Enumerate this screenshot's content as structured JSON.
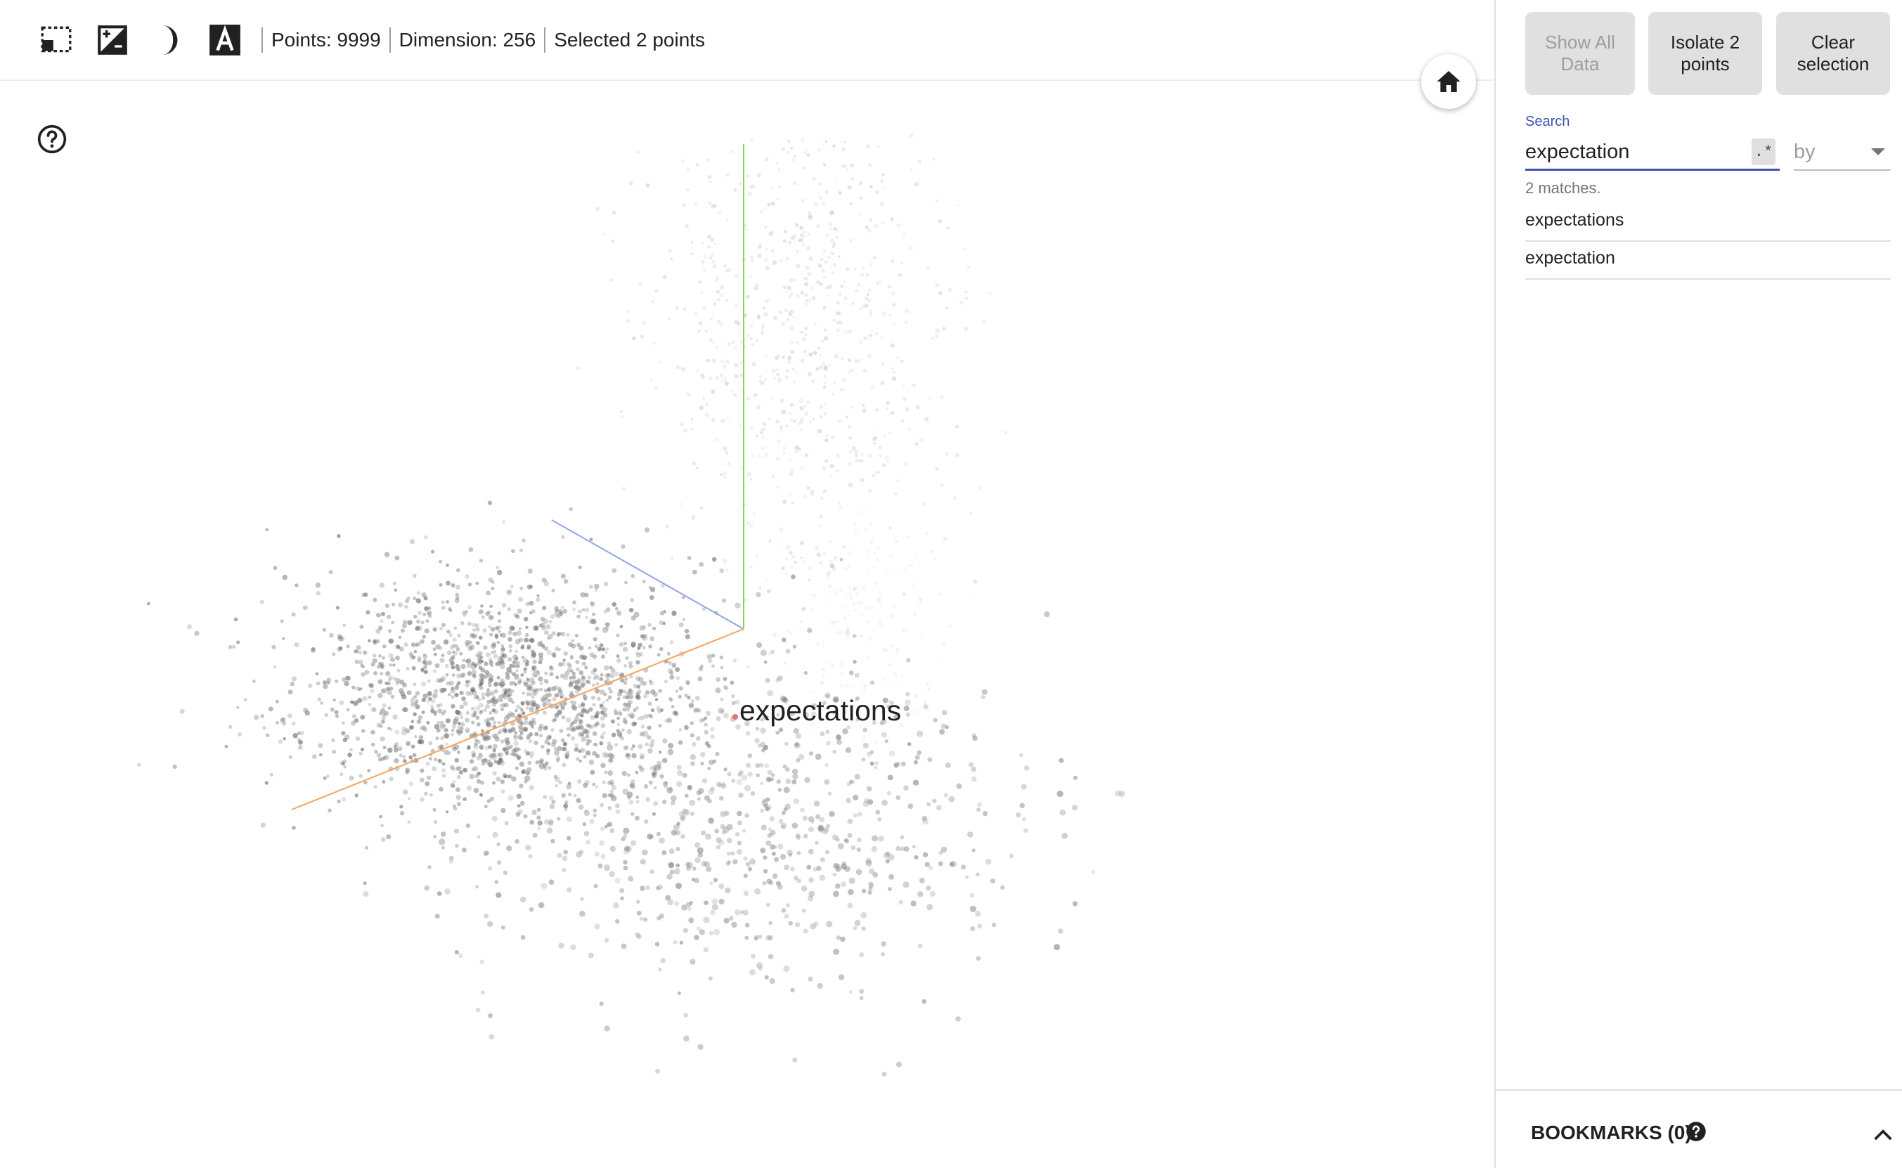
{
  "toolbar": {
    "icons": [
      "select-region-icon",
      "night-mode-icon",
      "dark-mode-icon",
      "label-toggle-icon"
    ],
    "status": {
      "points": "Points: 9999",
      "dimension": "Dimension: 256",
      "selected": "Selected 2 points"
    },
    "home_icon": "home-icon",
    "help_icon": "help-icon"
  },
  "visualization": {
    "point_label": "expectations",
    "axis_colors": {
      "y": "#7ed957",
      "z": "#90a4e8",
      "x": "#f4a460"
    }
  },
  "inspector": {
    "buttons": {
      "show_all": "Show All\nData",
      "isolate": "Isolate 2\npoints",
      "clear": "Clear\nselection"
    },
    "search": {
      "label": "Search",
      "value": "expectation",
      "regex_toggle": ".*",
      "by_placeholder": "by"
    },
    "match_count": "2 matches.",
    "matches": [
      "expectations",
      "expectation"
    ],
    "bookmarks": {
      "title": "BOOKMARKS (0)"
    }
  },
  "colors": {
    "accent": "#3f51b5",
    "button_bg": "#e0e0e0",
    "disabled_text": "#9e9e9e"
  }
}
